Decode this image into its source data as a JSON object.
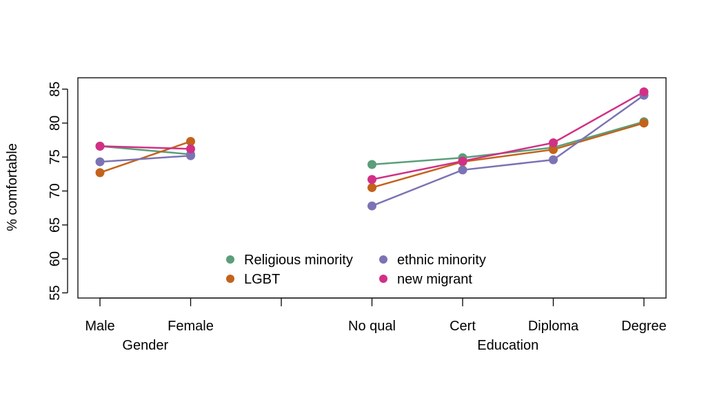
{
  "chart_data": {
    "type": "line",
    "ylabel": "% comfortable",
    "ylim": [
      55,
      85
    ],
    "yticks": [
      55,
      60,
      65,
      70,
      75,
      80,
      85
    ],
    "grid": false,
    "legend": "bottom-center",
    "groups": [
      {
        "title": "Gender",
        "categories": [
          "Male",
          "Female"
        ]
      },
      {
        "title": "Education",
        "categories": [
          "No qual",
          "Cert",
          "Diploma",
          "Degree"
        ]
      }
    ],
    "series": [
      {
        "name": "Religious minority",
        "color": "#5a9e7a",
        "values": {
          "Gender": [
            76.6,
            75.4
          ],
          "Education": [
            73.9,
            74.9,
            76.4,
            80.2
          ]
        }
      },
      {
        "name": "LGBT",
        "color": "#c3621b",
        "values": {
          "Gender": [
            72.7,
            77.3
          ],
          "Education": [
            70.5,
            74.3,
            76.1,
            80.0
          ]
        }
      },
      {
        "name": "ethnic minority",
        "color": "#7b73b3",
        "values": {
          "Gender": [
            74.3,
            75.2
          ],
          "Education": [
            67.8,
            73.1,
            74.6,
            84.1
          ]
        }
      },
      {
        "name": "new migrant",
        "color": "#d13086",
        "values": {
          "Gender": [
            76.6,
            76.2
          ],
          "Education": [
            71.7,
            74.4,
            77.1,
            84.6
          ]
        }
      }
    ]
  }
}
